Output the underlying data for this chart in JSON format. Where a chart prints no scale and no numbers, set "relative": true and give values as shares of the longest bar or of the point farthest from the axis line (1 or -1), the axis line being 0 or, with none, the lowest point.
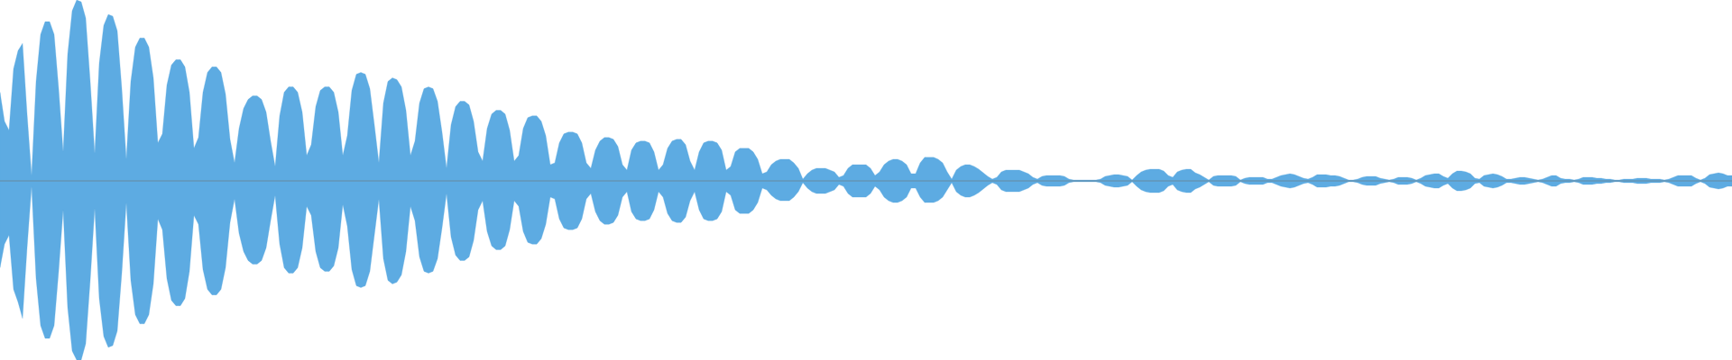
{
  "chart_data": {
    "type": "area",
    "relative": true,
    "categories": [
      null,
      null,
      null,
      null,
      null,
      null,
      null,
      null,
      null,
      null,
      null,
      null,
      null,
      null,
      null,
      null,
      null,
      null,
      null,
      null,
      null,
      null,
      null,
      null,
      null,
      null,
      null,
      null,
      null,
      null,
      null,
      null,
      null,
      null,
      null,
      null,
      null,
      null,
      null,
      null,
      null,
      null,
      null,
      null,
      null,
      null,
      null,
      null,
      null,
      null,
      null,
      null,
      null,
      null,
      null,
      null,
      null,
      null,
      null,
      null,
      null,
      null,
      null,
      null,
      null,
      null,
      null,
      null,
      null,
      null,
      null,
      null,
      null,
      null,
      null,
      null,
      null,
      null,
      null,
      null,
      null,
      null,
      null,
      null,
      null,
      null,
      null,
      null,
      null,
      null,
      null,
      null,
      null,
      null,
      null,
      null,
      null,
      null,
      null,
      null,
      null,
      null,
      null,
      null,
      null,
      null,
      null,
      null,
      null,
      null,
      null,
      null,
      null,
      null,
      null,
      null,
      null,
      null,
      null,
      null,
      null,
      null,
      null,
      null,
      null,
      null,
      null,
      null,
      null,
      null,
      null,
      null,
      null,
      null,
      null,
      null,
      null,
      null,
      null,
      null,
      null,
      null,
      null,
      null,
      null,
      null,
      null,
      null,
      null,
      null,
      null,
      null,
      null,
      null,
      null,
      null,
      null,
      null,
      null,
      null,
      null,
      null,
      null,
      null,
      null,
      null,
      null,
      null,
      null,
      null,
      null,
      null,
      null,
      null,
      null,
      null,
      null,
      null,
      null,
      null,
      null,
      null,
      null,
      null,
      null,
      null,
      null,
      null,
      null,
      null,
      null,
      null,
      null,
      null,
      null,
      null,
      null,
      null,
      null,
      null,
      null,
      null,
      null,
      null,
      null,
      null,
      null,
      null,
      null,
      null,
      null,
      null,
      null,
      null,
      null,
      null,
      null,
      null,
      null,
      null,
      null,
      null,
      null,
      null,
      null,
      null,
      null,
      null,
      null,
      null,
      null,
      null,
      null,
      null,
      null,
      null,
      null,
      null,
      null,
      null,
      null,
      null,
      null,
      null,
      null,
      null,
      null,
      null,
      null,
      null,
      null,
      null,
      null,
      null,
      null,
      null,
      null,
      null,
      null,
      null,
      null,
      null,
      null,
      null,
      null,
      null,
      null,
      null,
      null,
      null,
      null,
      null,
      null,
      null,
      null,
      null,
      null,
      null,
      null,
      null,
      null,
      null,
      null,
      null,
      null,
      null,
      null,
      null,
      null,
      null,
      null,
      null,
      null,
      null,
      null,
      null,
      null,
      null,
      null,
      null,
      null,
      null,
      null,
      null,
      null,
      null,
      null,
      null,
      null,
      null,
      null,
      null,
      null,
      null,
      null,
      null,
      null,
      null,
      null,
      null,
      null,
      null,
      null,
      null,
      null,
      null,
      null,
      null,
      null,
      null,
      null,
      null,
      null,
      null,
      null,
      null,
      null,
      null,
      null,
      null,
      null,
      null,
      null,
      null,
      null,
      null,
      null,
      null,
      null,
      null,
      null,
      null,
      null,
      null,
      null,
      null,
      null,
      null,
      null,
      null,
      null,
      null,
      null,
      null,
      null,
      null,
      null,
      null,
      null,
      null,
      null,
      null,
      null,
      null,
      null,
      null,
      null,
      null,
      null,
      null,
      null,
      null,
      null,
      null,
      null
    ],
    "series": [
      {
        "color": "#5dabe2",
        "values": [
          0.49,
          0.33,
          0.28,
          0.62,
          0.72,
          0.76,
          0.37,
          0.03,
          0.55,
          0.81,
          0.88,
          0.88,
          0.81,
          0.51,
          0.16,
          0.7,
          0.94,
          1.0,
          0.99,
          0.9,
          0.55,
          0.15,
          0.65,
          0.86,
          0.92,
          0.91,
          0.83,
          0.51,
          0.12,
          0.55,
          0.74,
          0.79,
          0.79,
          0.74,
          0.57,
          0.21,
          0.26,
          0.53,
          0.64,
          0.67,
          0.67,
          0.63,
          0.49,
          0.18,
          0.24,
          0.49,
          0.6,
          0.63,
          0.63,
          0.6,
          0.48,
          0.23,
          0.1,
          0.29,
          0.4,
          0.45,
          0.47,
          0.47,
          0.45,
          0.38,
          0.22,
          0.08,
          0.36,
          0.49,
          0.52,
          0.52,
          0.49,
          0.38,
          0.14,
          0.2,
          0.41,
          0.5,
          0.52,
          0.52,
          0.49,
          0.38,
          0.14,
          0.25,
          0.5,
          0.59,
          0.6,
          0.59,
          0.51,
          0.31,
          0.1,
          0.43,
          0.55,
          0.57,
          0.56,
          0.52,
          0.39,
          0.14,
          0.22,
          0.43,
          0.51,
          0.52,
          0.51,
          0.44,
          0.27,
          0.07,
          0.31,
          0.41,
          0.44,
          0.44,
          0.42,
          0.33,
          0.16,
          0.11,
          0.29,
          0.37,
          0.39,
          0.39,
          0.37,
          0.28,
          0.11,
          0.14,
          0.29,
          0.35,
          0.36,
          0.36,
          0.33,
          0.25,
          0.09,
          0.1,
          0.21,
          0.26,
          0.27,
          0.27,
          0.26,
          0.21,
          0.1,
          0.07,
          0.17,
          0.22,
          0.24,
          0.24,
          0.23,
          0.19,
          0.09,
          0.06,
          0.17,
          0.21,
          0.22,
          0.22,
          0.21,
          0.16,
          0.06,
          0.09,
          0.18,
          0.22,
          0.23,
          0.23,
          0.2,
          0.11,
          0.06,
          0.16,
          0.21,
          0.22,
          0.22,
          0.21,
          0.17,
          0.06,
          0.08,
          0.16,
          0.18,
          0.18,
          0.18,
          0.16,
          0.12,
          0.04,
          0.05,
          0.09,
          0.11,
          0.12,
          0.12,
          0.12,
          0.1,
          0.07,
          0.01,
          0.04,
          0.06,
          0.07,
          0.07,
          0.07,
          0.06,
          0.05,
          0.02,
          0.03,
          0.07,
          0.09,
          0.09,
          0.09,
          0.09,
          0.07,
          0.03,
          0.05,
          0.09,
          0.11,
          0.12,
          0.12,
          0.11,
          0.09,
          0.04,
          0.04,
          0.1,
          0.13,
          0.13,
          0.13,
          0.12,
          0.1,
          0.05,
          0.01,
          0.06,
          0.08,
          0.09,
          0.09,
          0.08,
          0.065,
          0.045,
          0.025,
          0.01,
          0.02,
          0.05,
          0.06,
          0.06,
          0.06,
          0.06,
          0.05,
          0.04,
          0.02,
          0.01,
          0.025,
          0.03,
          0.03,
          0.03,
          0.03,
          0.025,
          0.01,
          0.005,
          0.005,
          0.005,
          0.005,
          0.005,
          0.005,
          0.01,
          0.025,
          0.03,
          0.035,
          0.035,
          0.03,
          0.025,
          0.005,
          0.03,
          0.05,
          0.06,
          0.065,
          0.065,
          0.065,
          0.055,
          0.03,
          0.02,
          0.05,
          0.06,
          0.065,
          0.065,
          0.045,
          0.035,
          0.02,
          0.005,
          0.025,
          0.03,
          0.03,
          0.03,
          0.03,
          0.025,
          0.005,
          0.015,
          0.02,
          0.02,
          0.02,
          0.02,
          0.01,
          0.01,
          0.02,
          0.03,
          0.035,
          0.04,
          0.035,
          0.025,
          0.015,
          0.01,
          0.02,
          0.035,
          0.035,
          0.035,
          0.03,
          0.03,
          0.025,
          0.015,
          0.005,
          0.005,
          0.01,
          0.02,
          0.025,
          0.025,
          0.025,
          0.015,
          0.01,
          0.005,
          0.01,
          0.02,
          0.02,
          0.02,
          0.015,
          0.005,
          0.015,
          0.03,
          0.035,
          0.04,
          0.04,
          0.025,
          0.015,
          0.04,
          0.055,
          0.055,
          0.05,
          0.04,
          0.015,
          0.01,
          0.03,
          0.035,
          0.04,
          0.035,
          0.025,
          0.01,
          0.01,
          0.015,
          0.02,
          0.02,
          0.015,
          0.01,
          0.005,
          0.01,
          0.02,
          0.03,
          0.03,
          0.015,
          0.01,
          0.01,
          0.005,
          0.01,
          0.02,
          0.02,
          0.02,
          0.015,
          0.015,
          0.01,
          0.01,
          0.005,
          0.005,
          0.01,
          0.01,
          0.01,
          0.015,
          0.015,
          0.015,
          0.01,
          0.01,
          0.01,
          0.005,
          0.01,
          0.02,
          0.03,
          0.03,
          0.03,
          0.03,
          0.015,
          0.005,
          0.015,
          0.035,
          0.04,
          0.045,
          0.04,
          0.03,
          0.03
        ]
      },
      {
        "color": "#5dabe2",
        "values": [
          -0.48,
          -0.35,
          -0.3,
          -0.6,
          -0.67,
          -0.76,
          -0.37,
          -0.03,
          -0.54,
          -0.8,
          -0.87,
          -0.87,
          -0.8,
          -0.5,
          -0.16,
          -0.7,
          -0.94,
          -0.99,
          -0.99,
          -0.9,
          -0.55,
          -0.15,
          -0.65,
          -0.86,
          -0.92,
          -0.91,
          -0.83,
          -0.51,
          -0.12,
          -0.55,
          -0.74,
          -0.79,
          -0.79,
          -0.74,
          -0.57,
          -0.21,
          -0.27,
          -0.54,
          -0.66,
          -0.69,
          -0.69,
          -0.65,
          -0.5,
          -0.19,
          -0.24,
          -0.49,
          -0.6,
          -0.63,
          -0.63,
          -0.6,
          -0.48,
          -0.23,
          -0.1,
          -0.29,
          -0.39,
          -0.44,
          -0.46,
          -0.46,
          -0.44,
          -0.37,
          -0.22,
          -0.08,
          -0.35,
          -0.48,
          -0.51,
          -0.51,
          -0.48,
          -0.37,
          -0.14,
          -0.19,
          -0.39,
          -0.48,
          -0.5,
          -0.5,
          -0.47,
          -0.37,
          -0.13,
          -0.25,
          -0.49,
          -0.58,
          -0.59,
          -0.58,
          -0.5,
          -0.3,
          -0.1,
          -0.43,
          -0.55,
          -0.57,
          -0.56,
          -0.52,
          -0.39,
          -0.14,
          -0.22,
          -0.42,
          -0.5,
          -0.51,
          -0.5,
          -0.43,
          -0.26,
          -0.07,
          -0.31,
          -0.41,
          -0.44,
          -0.44,
          -0.42,
          -0.33,
          -0.16,
          -0.11,
          -0.28,
          -0.36,
          -0.38,
          -0.38,
          -0.36,
          -0.27,
          -0.11,
          -0.14,
          -0.28,
          -0.34,
          -0.35,
          -0.35,
          -0.32,
          -0.24,
          -0.09,
          -0.1,
          -0.21,
          -0.26,
          -0.27,
          -0.27,
          -0.26,
          -0.21,
          -0.1,
          -0.07,
          -0.17,
          -0.22,
          -0.24,
          -0.24,
          -0.23,
          -0.19,
          -0.09,
          -0.06,
          -0.17,
          -0.21,
          -0.22,
          -0.22,
          -0.21,
          -0.16,
          -0.06,
          -0.09,
          -0.18,
          -0.22,
          -0.23,
          -0.23,
          -0.2,
          -0.11,
          -0.06,
          -0.16,
          -0.21,
          -0.22,
          -0.22,
          -0.21,
          -0.17,
          -0.06,
          -0.08,
          -0.16,
          -0.18,
          -0.18,
          -0.18,
          -0.16,
          -0.12,
          -0.04,
          -0.05,
          -0.08,
          -0.1,
          -0.11,
          -0.11,
          -0.11,
          -0.09,
          -0.06,
          -0.01,
          -0.04,
          -0.06,
          -0.07,
          -0.07,
          -0.07,
          -0.06,
          -0.05,
          -0.02,
          -0.03,
          -0.07,
          -0.09,
          -0.09,
          -0.09,
          -0.09,
          -0.07,
          -0.03,
          -0.05,
          -0.09,
          -0.11,
          -0.12,
          -0.12,
          -0.11,
          -0.09,
          -0.04,
          -0.04,
          -0.09,
          -0.12,
          -0.12,
          -0.12,
          -0.11,
          -0.09,
          -0.05,
          -0.01,
          -0.06,
          -0.08,
          -0.09,
          -0.09,
          -0.08,
          -0.065,
          -0.045,
          -0.025,
          -0.01,
          -0.02,
          -0.05,
          -0.06,
          -0.06,
          -0.06,
          -0.06,
          -0.05,
          -0.04,
          -0.02,
          -0.01,
          -0.025,
          -0.03,
          -0.03,
          -0.03,
          -0.03,
          -0.025,
          -0.01,
          -0.005,
          -0.005,
          -0.005,
          -0.005,
          -0.005,
          -0.005,
          -0.01,
          -0.025,
          -0.03,
          -0.035,
          -0.035,
          -0.03,
          -0.025,
          -0.005,
          -0.03,
          -0.05,
          -0.06,
          -0.065,
          -0.065,
          -0.065,
          -0.055,
          -0.03,
          -0.02,
          -0.05,
          -0.06,
          -0.065,
          -0.065,
          -0.045,
          -0.035,
          -0.02,
          -0.005,
          -0.025,
          -0.03,
          -0.03,
          -0.03,
          -0.03,
          -0.025,
          -0.005,
          -0.015,
          -0.02,
          -0.02,
          -0.02,
          -0.02,
          -0.01,
          -0.01,
          -0.02,
          -0.03,
          -0.035,
          -0.04,
          -0.035,
          -0.025,
          -0.015,
          -0.01,
          -0.02,
          -0.035,
          -0.035,
          -0.035,
          -0.03,
          -0.03,
          -0.025,
          -0.015,
          -0.005,
          -0.005,
          -0.01,
          -0.02,
          -0.025,
          -0.025,
          -0.025,
          -0.015,
          -0.01,
          -0.005,
          -0.01,
          -0.02,
          -0.02,
          -0.02,
          -0.015,
          -0.005,
          -0.015,
          -0.03,
          -0.035,
          -0.04,
          -0.04,
          -0.025,
          -0.015,
          -0.04,
          -0.055,
          -0.055,
          -0.05,
          -0.04,
          -0.015,
          -0.01,
          -0.03,
          -0.035,
          -0.04,
          -0.035,
          -0.025,
          -0.01,
          -0.01,
          -0.015,
          -0.02,
          -0.02,
          -0.015,
          -0.01,
          -0.005,
          -0.01,
          -0.02,
          -0.03,
          -0.03,
          -0.015,
          -0.01,
          -0.01,
          -0.005,
          -0.01,
          -0.02,
          -0.02,
          -0.02,
          -0.015,
          -0.015,
          -0.01,
          -0.01,
          -0.005,
          -0.005,
          -0.01,
          -0.01,
          -0.01,
          -0.015,
          -0.015,
          -0.015,
          -0.01,
          -0.01,
          -0.01,
          -0.005,
          -0.01,
          -0.02,
          -0.03,
          -0.03,
          -0.03,
          -0.03,
          -0.015,
          -0.005,
          -0.015,
          -0.035,
          -0.04,
          -0.045,
          -0.04,
          -0.03,
          -0.03
        ]
      }
    ]
  }
}
